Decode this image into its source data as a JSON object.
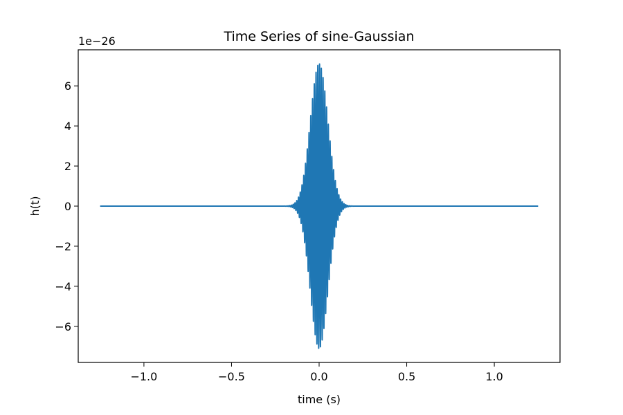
{
  "chart_data": {
    "type": "line",
    "title": "Time Series of sine-Gaussian",
    "xlabel": "time (s)",
    "ylabel": "h(t)",
    "y_offset_label": "1e−26",
    "xlim": [
      -1.375,
      1.375
    ],
    "ylim": [
      -7.8,
      7.8
    ],
    "x_ticks": [
      -1.0,
      -0.5,
      0.0,
      0.5,
      1.0
    ],
    "x_tick_labels": [
      "−1.0",
      "−0.5",
      "0.0",
      "0.5",
      "1.0"
    ],
    "y_ticks": [
      -6,
      -4,
      -2,
      0,
      2,
      4,
      6
    ],
    "y_tick_labels": [
      "−6",
      "−4",
      "−2",
      "0",
      "2",
      "4",
      "6"
    ],
    "grid": false,
    "series": [
      {
        "color": "#1f77b4",
        "x_start": -1.25,
        "x_end": 1.25,
        "center": 0.0,
        "amplitude": 7.1,
        "envelope_sigma": 0.05,
        "frequency_hz": 100
      }
    ]
  }
}
